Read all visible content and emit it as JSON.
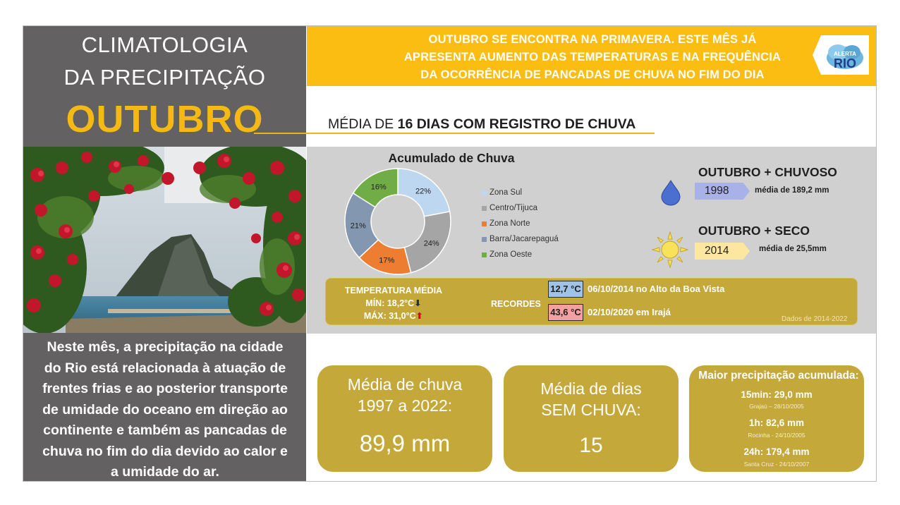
{
  "header": {
    "title_line1": "CLIMATOLOGIA",
    "title_line2": "DA PRECIPITAÇÃO",
    "month": "OUTUBRO",
    "banner_line1": "OUTUBRO SE ENCONTRA NA PRIMAVERA. ESTE MÊS JÁ",
    "banner_line2": "APRESENTA AUMENTO DAS TEMPERATURAS E NA FREQUÊNCIA",
    "banner_line3": "DA OCORRÊNCIA DE PANCADAS DE CHUVA NO FIM DO DIA",
    "logo_small": "ALERTA",
    "logo_big": "RIO"
  },
  "subtitle": {
    "prefix": "MÉDIA DE ",
    "bold": "16 DIAS COM REGISTRO DE CHUVA"
  },
  "description": {
    "line1": "Neste mês, a precipitação na cidade",
    "line2": "do Rio está relacionada à atuação de",
    "line3": "frentes frias e ao posterior transporte",
    "line4": "de umidade do oceano em direção ao",
    "line5": "continente e também as pancadas de",
    "line6": "chuva no fim do dia devido ao calor e",
    "line7": "a umidade do ar."
  },
  "chart_data": {
    "type": "pie",
    "title": "Acumulado de Chuva",
    "categories": [
      "Zona Sul",
      "Centro/Tijuca",
      "Zona Norte",
      "Barra/Jacarepaguá",
      "Zona Oeste"
    ],
    "values": [
      22,
      24,
      17,
      21,
      16
    ],
    "labels": [
      "22%",
      "24%",
      "17%",
      "21%",
      "16%"
    ],
    "colors": [
      "#bcd7ef",
      "#a5a5a5",
      "#ed7d31",
      "#8497b0",
      "#70ad47"
    ],
    "legend_position": "right"
  },
  "records": {
    "wet_title": "OUTUBRO + CHUVOSO",
    "wet_year": "1998",
    "wet_mean": "média de 189,2 mm",
    "dry_title": "OUTUBRO + SECO",
    "dry_year": "2014",
    "dry_mean": "média de 25,5mm"
  },
  "temperature": {
    "title": "TEMPERATURA MÉDIA",
    "min": "MÍN: 18,2°C",
    "max": "MÁX: 31,0°C",
    "arrow_down": "⬇",
    "arrow_up": "⬆",
    "recordes_label": "RECORDES",
    "record_low": "12,7 °C",
    "record_low_desc": "06/10/2014 no Alto da Boa Vista",
    "record_high": "43,6 °C",
    "record_high_desc": "02/10/2020 em Irajá",
    "data_source": "Dados de 2014-2022"
  },
  "boxes": {
    "rain_label1": "Média de chuva",
    "rain_label2": "1997 a 2022:",
    "rain_value": "89,9 mm",
    "dry_label1": "Média de dias",
    "dry_label2": "SEM CHUVA:",
    "dry_value": "15",
    "max_title": "Maior precipitação acumulada:",
    "max_15_value": "15min: 29,0 mm",
    "max_15_place": "Grajaú – 28/10/2005",
    "max_1h_value": "1h: 82,6 mm",
    "max_1h_place": "Rocinha - 24/10/2005",
    "max_24h_value": "24h: 179,4 mm",
    "max_24h_place": "Santa Cruz - 24/10/2007"
  },
  "colors": {
    "gold": "#fbbd12",
    "box_gold": "#c4a83a",
    "dark_gray": "#636161",
    "panel_gray": "#d0d0d0"
  },
  "icons": {
    "drop": "water-drop-icon",
    "sun": "sun-icon",
    "logo": "alerta-rio-logo"
  }
}
